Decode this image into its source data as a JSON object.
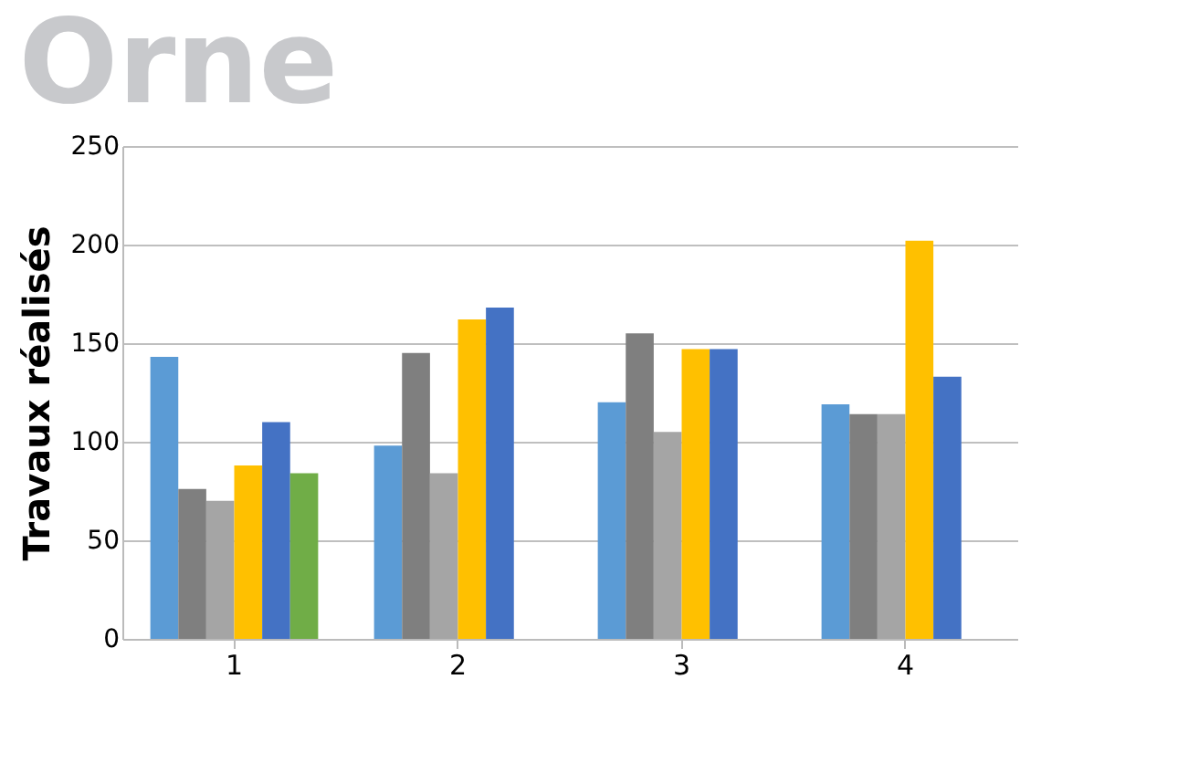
{
  "chart_data": {
    "type": "bar",
    "title": "Orne",
    "ylabel": "Travaux réalisés",
    "categories": [
      "1",
      "2",
      "3",
      "4"
    ],
    "series": [
      {
        "color": "#5b9bd5",
        "values": [
          143,
          98,
          120,
          119
        ]
      },
      {
        "color": "#7f7f7f",
        "values": [
          76,
          145,
          155,
          114
        ]
      },
      {
        "color": "#a5a5a5",
        "values": [
          70,
          84,
          105,
          114
        ]
      },
      {
        "color": "#ffc000",
        "values": [
          88,
          162,
          147,
          202
        ]
      },
      {
        "color": "#4472c4",
        "values": [
          110,
          168,
          147,
          133
        ]
      },
      {
        "color": "#70ad47",
        "values": [
          84,
          null,
          null,
          null
        ]
      }
    ],
    "ylim": [
      0,
      250
    ],
    "yticks": [
      0,
      50,
      100,
      150,
      200,
      250
    ],
    "grid": "y",
    "legend": false
  }
}
